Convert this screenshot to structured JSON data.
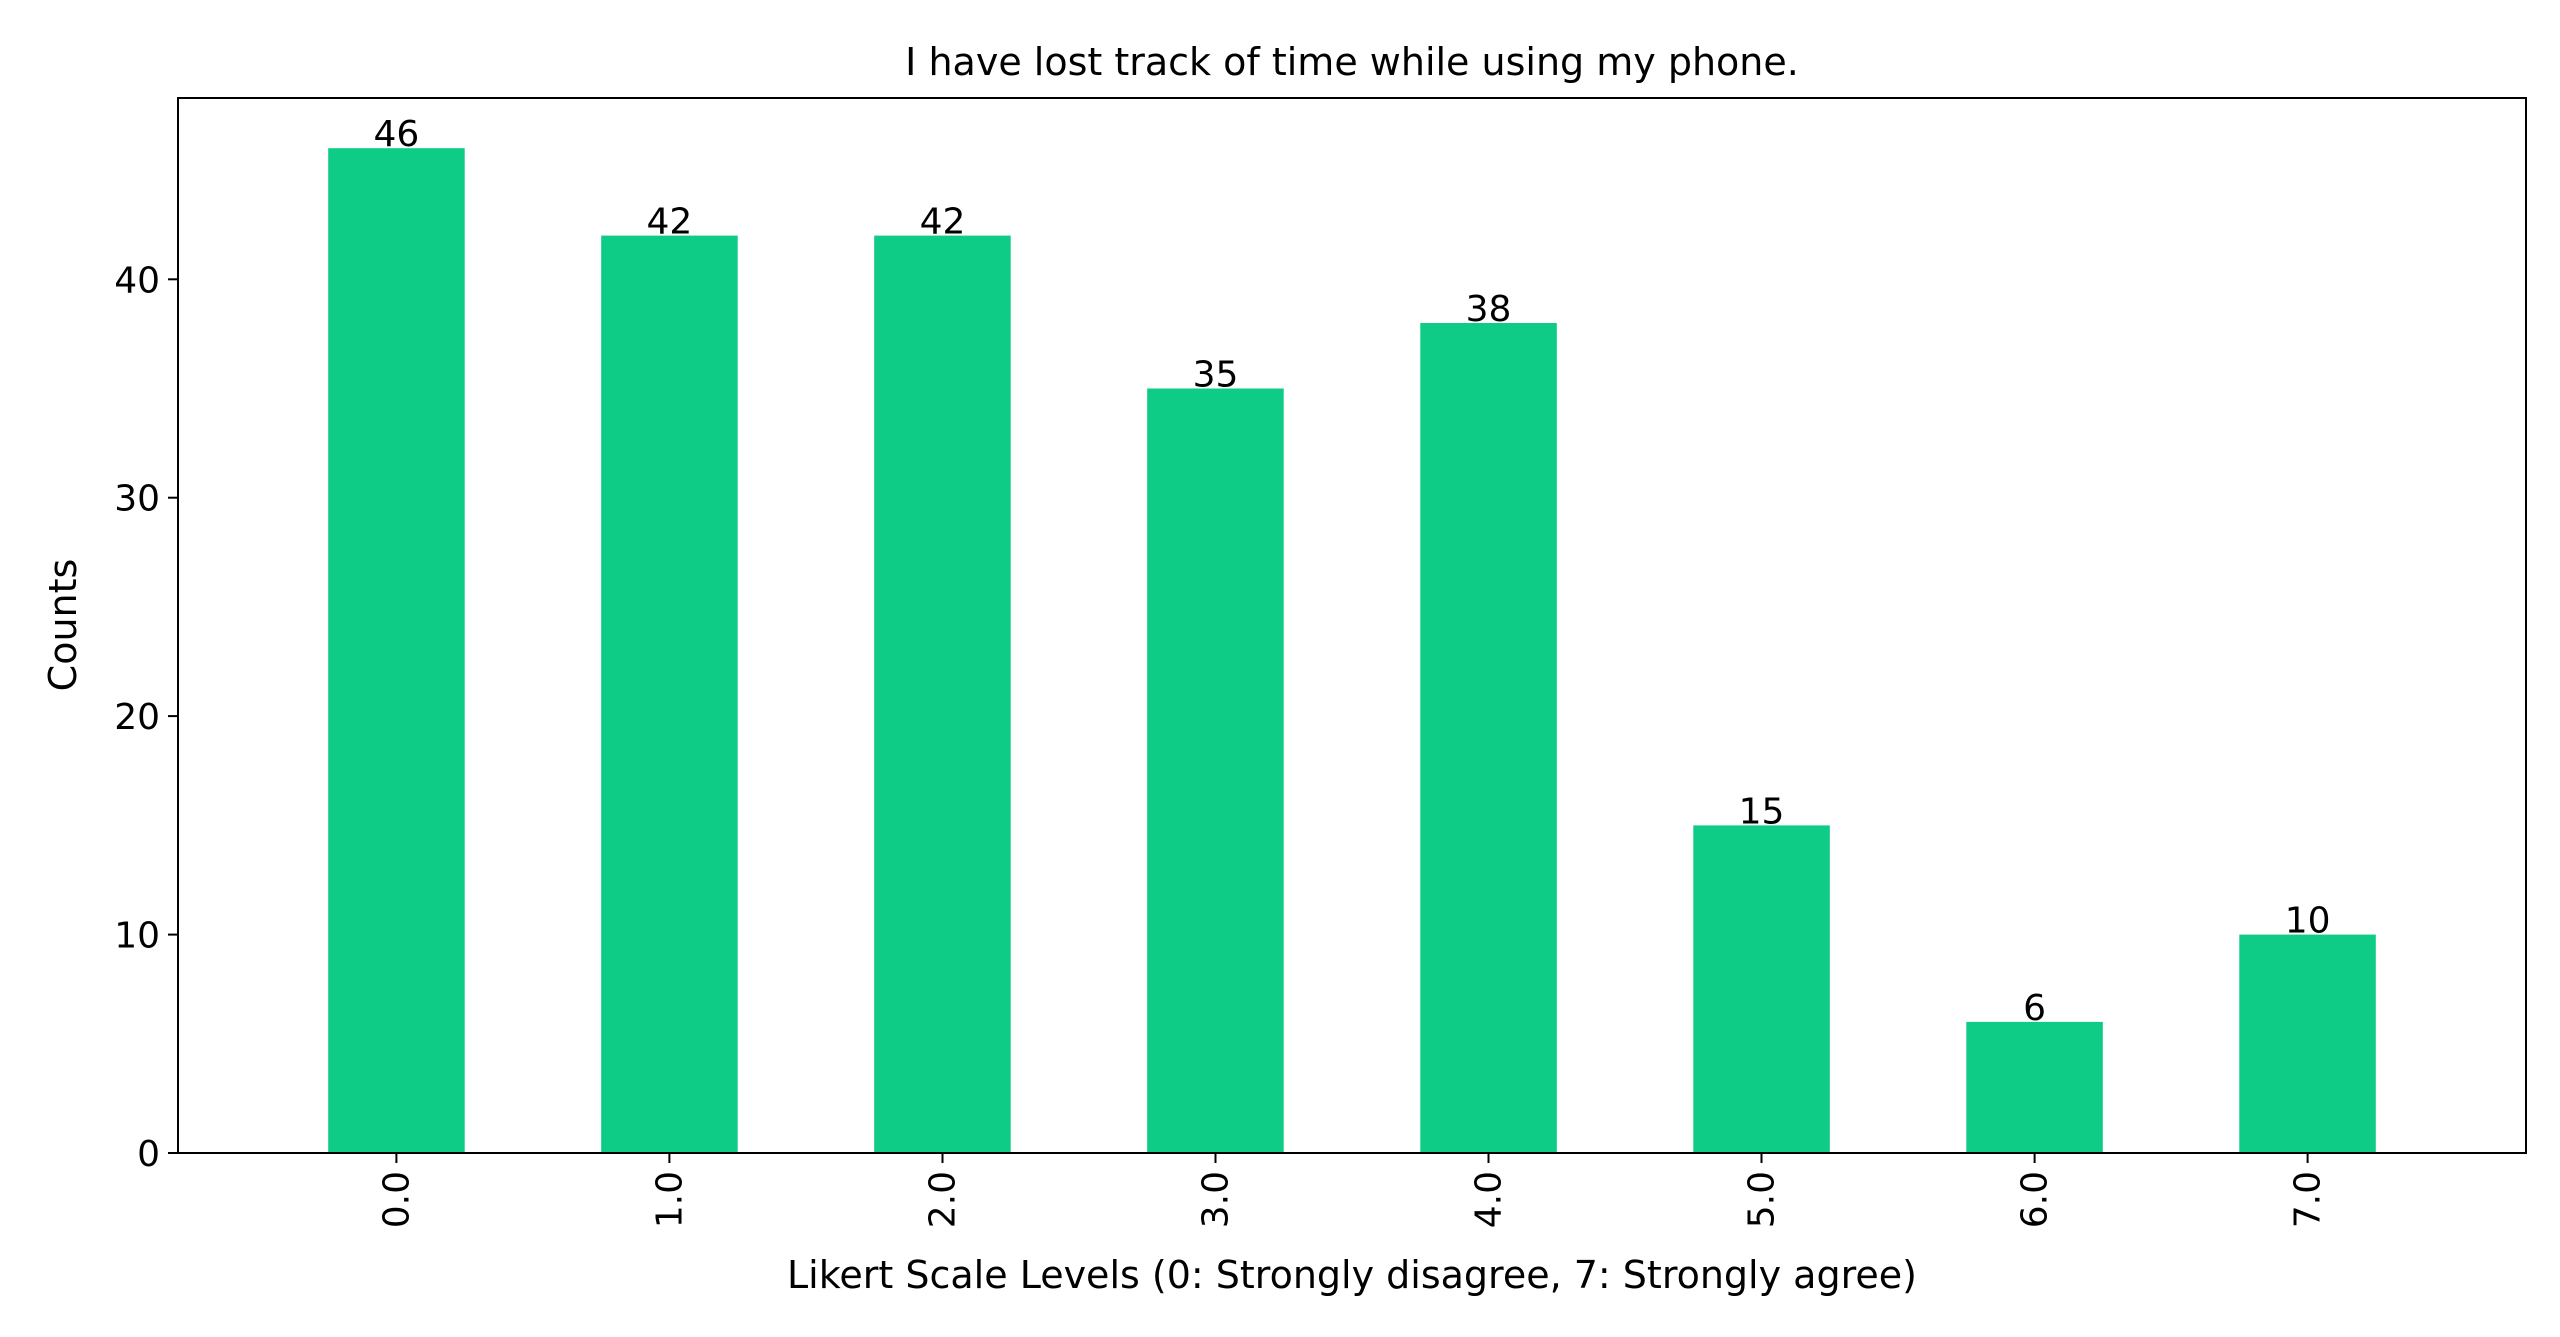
{
  "colors": {
    "bar": "#0ecb85",
    "axis": "#000000",
    "text": "#000000",
    "background": "#ffffff"
  },
  "chart_data": {
    "type": "bar",
    "title": "I have lost track of time while using my phone.",
    "xlabel": "Likert Scale Levels (0: Strongly disagree, 7: Strongly agree)",
    "ylabel": "Counts",
    "categories": [
      "0.0",
      "1.0",
      "2.0",
      "3.0",
      "4.0",
      "5.0",
      "6.0",
      "7.0"
    ],
    "values": [
      46,
      42,
      42,
      35,
      38,
      15,
      6,
      10
    ],
    "data_labels": [
      "46",
      "42",
      "42",
      "35",
      "38",
      "15",
      "6",
      "10"
    ],
    "ylim": [
      0,
      48.3
    ],
    "yticks": [
      0,
      10,
      20,
      30,
      40
    ],
    "ytick_labels": [
      "0",
      "10",
      "20",
      "30",
      "40"
    ],
    "xtick_rotation": "vertical",
    "grid": false,
    "legend": "none"
  }
}
